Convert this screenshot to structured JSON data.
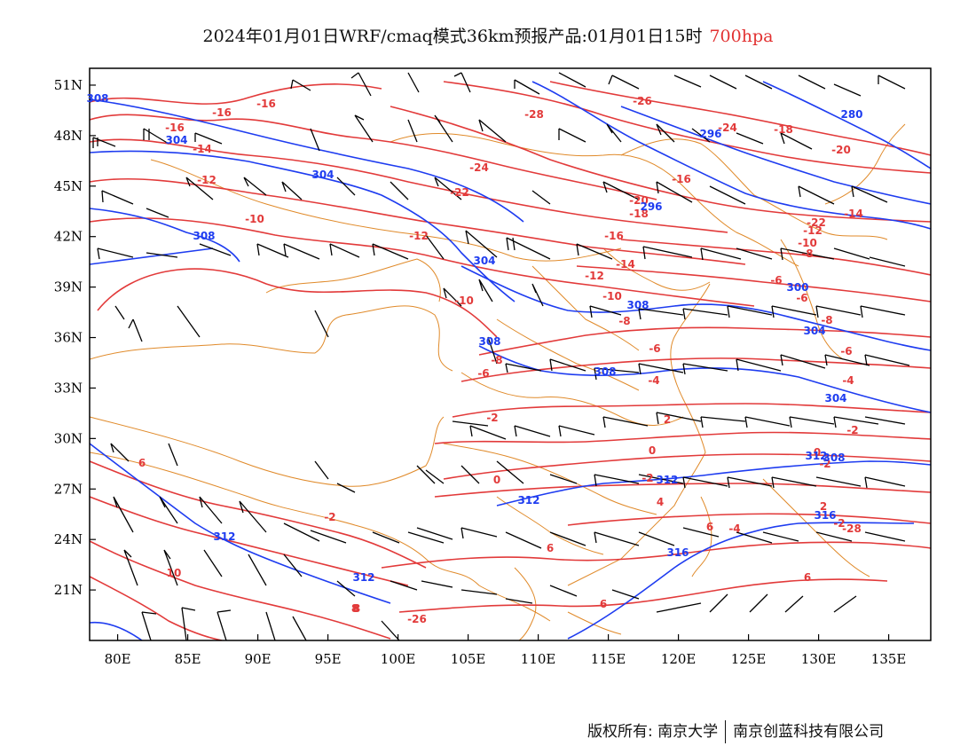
{
  "title": {
    "main": "2024年01月01日WRF/cmaq模式36km预报产品:01月01日15时",
    "level": "700hpa"
  },
  "axes": {
    "x_ticks": [
      "80E",
      "85E",
      "90E",
      "95E",
      "100E",
      "105E",
      "110E",
      "115E",
      "120E",
      "125E",
      "130E",
      "135E"
    ],
    "y_ticks": [
      "21N",
      "24N",
      "27N",
      "30N",
      "33N",
      "36N",
      "39N",
      "42N",
      "45N",
      "48N",
      "51N"
    ]
  },
  "map": {
    "lon_range": [
      78,
      138
    ],
    "lat_range": [
      18,
      52
    ],
    "colors": {
      "temperature": "#e23a3a",
      "height": "#1e3cf0",
      "border": "#e08a2a",
      "wind": "#000000",
      "frame": "#000000"
    },
    "temperature_labels": [
      "-16",
      "-16",
      "-16",
      "-14",
      "-12",
      "-10",
      "-12",
      "-10",
      "-8",
      "-6",
      "-6",
      "-2",
      "-2",
      "0",
      "2",
      "-2",
      "0",
      "-4",
      "4",
      "6",
      "6",
      "6",
      "10",
      "6",
      "8",
      "-28",
      "-26",
      "-24",
      "-22",
      "-20",
      "-18",
      "-16",
      "-14",
      "-12",
      "-10",
      "-8",
      "-8",
      "-6",
      "-4",
      "-2",
      "-2",
      "0",
      "2",
      "-2",
      "-4",
      "-6",
      "-6",
      "-8",
      "-10",
      "-12",
      "-14",
      "-16",
      "-18",
      "-20",
      "-22",
      "-24",
      "-26",
      "-28",
      "6",
      "8"
    ],
    "height_labels": [
      "308",
      "304",
      "304",
      "308",
      "304",
      "308",
      "308",
      "304",
      "312",
      "312",
      "312",
      "312",
      "316",
      "316",
      "308",
      "304",
      "308",
      "312",
      "300",
      "296",
      "280",
      "296"
    ]
  },
  "footer": {
    "left": "版权所有: 南京大学",
    "right": "南京创蓝科技有限公司"
  }
}
